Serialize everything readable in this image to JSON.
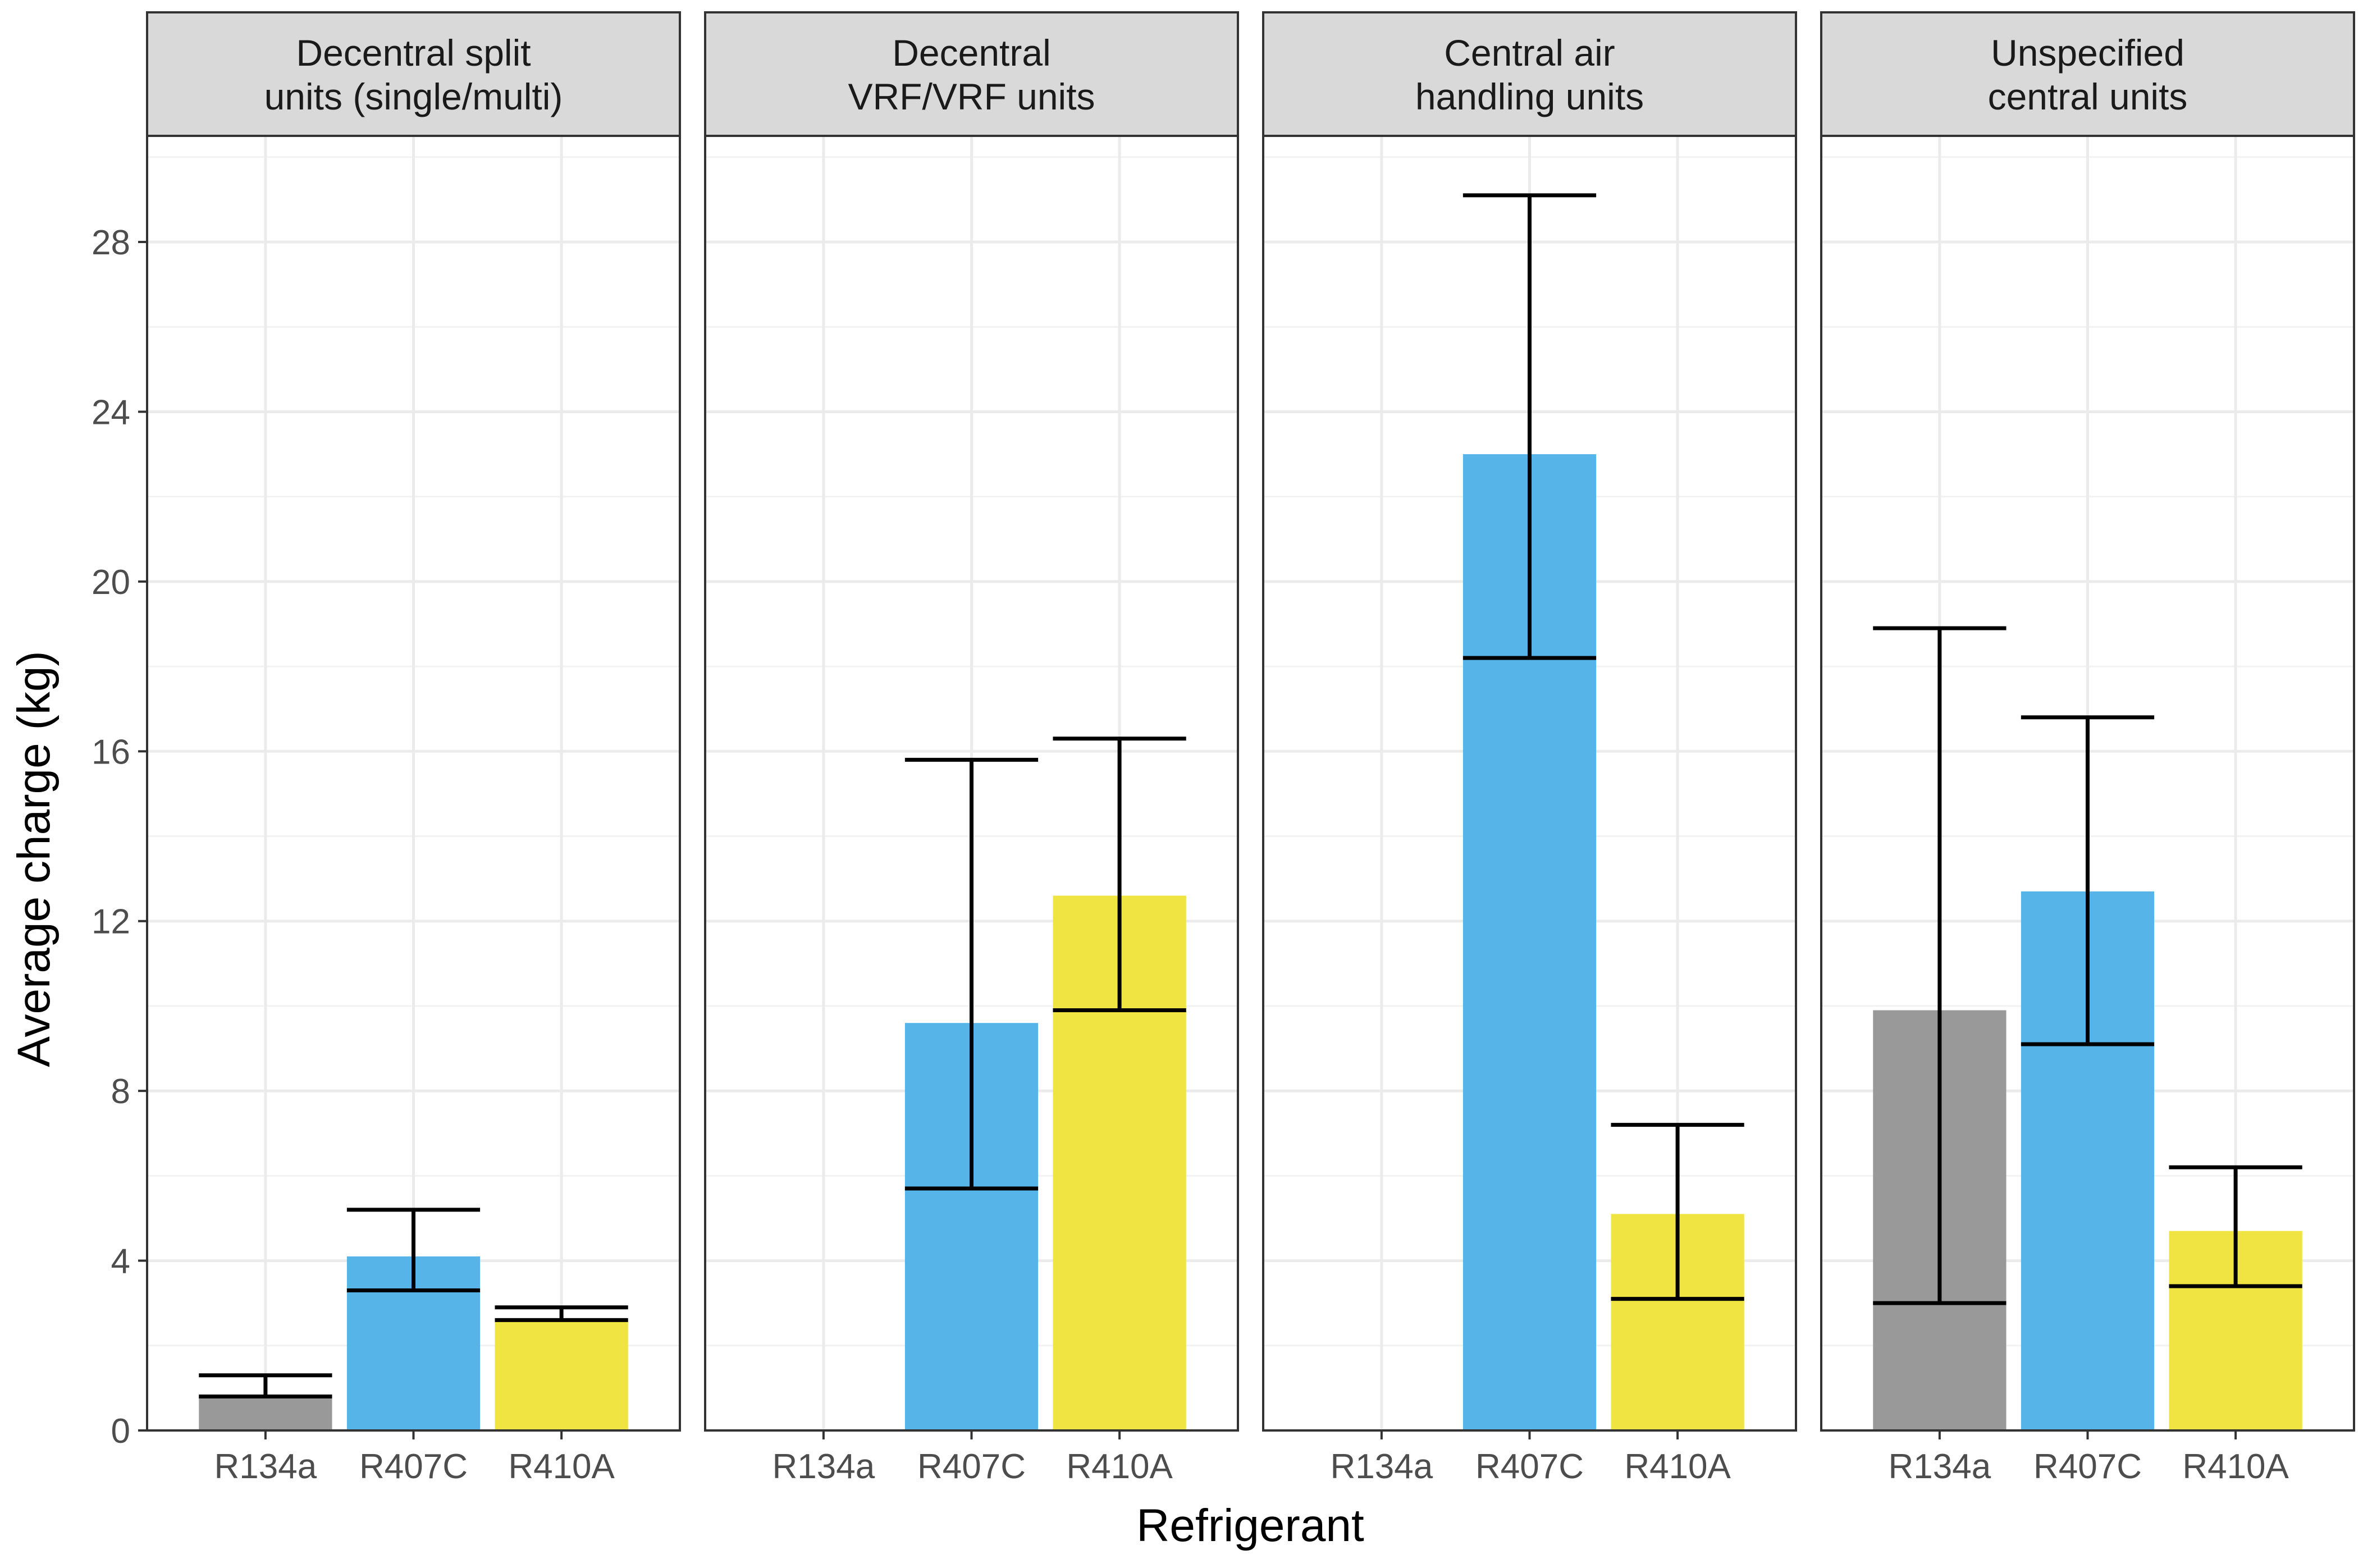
{
  "chart_data": {
    "type": "bar",
    "xlabel": "Refrigerant",
    "ylabel": "Average charge (kg)",
    "ylim": [
      0,
      30.5
    ],
    "yticks": [
      0,
      4,
      8,
      12,
      16,
      20,
      24,
      28
    ],
    "categories": [
      "R134a",
      "R407C",
      "R410A"
    ],
    "colors": {
      "R134a": "#999999",
      "R407C": "#56B4E9",
      "R410A": "#F0E442"
    },
    "grid": true,
    "legend": "none",
    "facets": [
      {
        "strip": [
          "Decentral split",
          "units (single/multi)"
        ],
        "values": [
          0.8,
          4.1,
          2.6
        ],
        "error_low": [
          0.8,
          3.3,
          2.6
        ],
        "error_high": [
          1.3,
          5.2,
          2.9
        ]
      },
      {
        "strip": [
          "Decentral",
          "VRF/VRF units"
        ],
        "values": [
          null,
          9.6,
          12.6
        ],
        "error_low": [
          null,
          5.7,
          9.9
        ],
        "error_high": [
          null,
          15.8,
          16.3
        ]
      },
      {
        "strip": [
          "Central air",
          "handling units"
        ],
        "values": [
          null,
          23.0,
          5.1
        ],
        "error_low": [
          null,
          18.2,
          3.1
        ],
        "error_high": [
          null,
          29.1,
          7.2
        ]
      },
      {
        "strip": [
          "Unspecified",
          "central units"
        ],
        "values": [
          9.9,
          12.7,
          4.7
        ],
        "error_low": [
          3.0,
          9.1,
          3.4
        ],
        "error_high": [
          18.9,
          16.8,
          6.2
        ]
      }
    ]
  }
}
